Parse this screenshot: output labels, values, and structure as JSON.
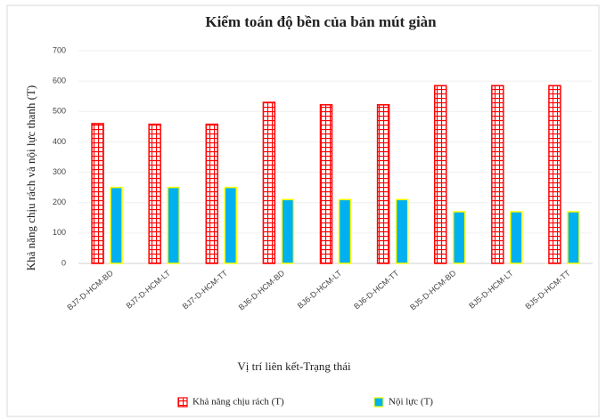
{
  "chart_data": {
    "type": "bar",
    "title": "Kiểm toán độ bền của bản mút giàn",
    "x_label": "Vị trí liên kết-Trạng thái",
    "y_label": "Khả năng chịu rách và nội lực thanh (T)",
    "categories": [
      "BJ7-D-HCM-BD",
      "BJ7-D-HCM-LT",
      "BJ7-D-HCM-TT",
      "BJ6-D-HCM-BD",
      "BJ6-D-HCM-LT",
      "BJ6-D-HCM-TT",
      "BJ5-D-HCM-BD",
      "BJ5-D-HCM-LT",
      "BJ5-D-HCM-TT"
    ],
    "series": [
      {
        "name": "Khả năng chịu rách (T)",
        "color": "#ff0000",
        "values": [
          460,
          458,
          458,
          530,
          522,
          522,
          585,
          585,
          585
        ]
      },
      {
        "name": "Nội lực (T)",
        "color": "#00b0f0",
        "values": [
          250,
          250,
          250,
          210,
          210,
          210,
          170,
          170,
          170
        ]
      }
    ],
    "ylim": [
      0,
      700
    ],
    "yticks": [
      0,
      100,
      200,
      300,
      400,
      500,
      600,
      700
    ],
    "grid": true,
    "legend": "bottom"
  }
}
